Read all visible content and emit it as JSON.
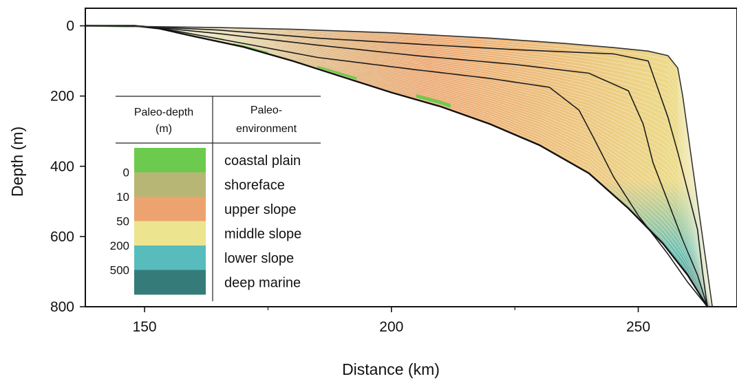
{
  "chart_data": {
    "type": "area",
    "title": "",
    "xlabel": "Distance (km)",
    "ylabel": "Depth (m)",
    "xlim": [
      138,
      270
    ],
    "ylim": [
      -50,
      800
    ],
    "y_inverted": true,
    "xticks": [
      150,
      200,
      250
    ],
    "xticks_minor": [
      175,
      225
    ],
    "yticks": [
      0,
      200,
      400,
      600,
      800
    ],
    "grid": false,
    "legend": {
      "placement": "lower-left",
      "header_depth": [
        "Paleo-depth",
        "(m)"
      ],
      "header_env": [
        "Paleo-",
        "environment"
      ],
      "entries": [
        {
          "label": "coastal plain",
          "color": "#6ccb4e"
        },
        {
          "label": "shoreface",
          "color": "#b8b675"
        },
        {
          "label": "upper slope",
          "color": "#eda36f"
        },
        {
          "label": "middle slope",
          "color": "#ede48f"
        },
        {
          "label": "lower slope",
          "color": "#58bcbd"
        },
        {
          "label": "deep marine",
          "color": "#347b79"
        }
      ],
      "depth_thresholds": [
        "0",
        "10",
        "50",
        "200",
        "500"
      ]
    },
    "colors": {
      "coastal_plain": "#6ccb4e",
      "shoreface": "#b8b675",
      "upper_slope": "#eda36f",
      "middle_slope": "#ede48f",
      "lower_slope": "#58bcbd",
      "deep_marine": "#347b79",
      "horizon": "#1d1d1d"
    },
    "profiles": {
      "top_surface": [
        [
          138,
          0
        ],
        [
          150,
          2
        ],
        [
          165,
          5
        ],
        [
          180,
          10
        ],
        [
          200,
          20
        ],
        [
          220,
          35
        ],
        [
          235,
          50
        ],
        [
          245,
          62
        ],
        [
          252,
          72
        ],
        [
          256,
          85
        ],
        [
          258,
          120
        ],
        [
          259,
          200
        ],
        [
          260,
          300
        ],
        [
          261,
          400
        ],
        [
          262,
          500
        ],
        [
          263,
          600
        ],
        [
          264,
          700
        ],
        [
          265,
          800
        ]
      ],
      "base_surface": [
        [
          138,
          0
        ],
        [
          148,
          0
        ],
        [
          153,
          8
        ],
        [
          160,
          30
        ],
        [
          170,
          60
        ],
        [
          180,
          100
        ],
        [
          190,
          145
        ],
        [
          200,
          190
        ],
        [
          210,
          230
        ],
        [
          220,
          280
        ],
        [
          230,
          340
        ],
        [
          240,
          420
        ],
        [
          248,
          520
        ],
        [
          255,
          620
        ],
        [
          260,
          710
        ],
        [
          264,
          800
        ]
      ],
      "horizons": [
        [
          [
            150,
            2
          ],
          [
            165,
            12
          ],
          [
            185,
            35
          ],
          [
            205,
            52
          ],
          [
            225,
            68
          ],
          [
            245,
            80
          ],
          [
            252,
            100
          ],
          [
            254,
            180
          ],
          [
            256,
            260
          ],
          [
            258,
            360
          ],
          [
            260,
            470
          ],
          [
            262,
            580
          ],
          [
            263,
            700
          ],
          [
            264,
            800
          ]
        ],
        [
          [
            152,
            4
          ],
          [
            165,
            22
          ],
          [
            185,
            55
          ],
          [
            205,
            85
          ],
          [
            225,
            110
          ],
          [
            240,
            135
          ],
          [
            248,
            185
          ],
          [
            251,
            280
          ],
          [
            253,
            390
          ],
          [
            256,
            500
          ],
          [
            259,
            610
          ],
          [
            262,
            710
          ],
          [
            264,
            800
          ]
        ],
        [
          [
            153,
            6
          ],
          [
            170,
            50
          ],
          [
            185,
            90
          ],
          [
            205,
            125
          ],
          [
            220,
            150
          ],
          [
            232,
            175
          ],
          [
            238,
            240
          ],
          [
            241,
            320
          ],
          [
            245,
            430
          ],
          [
            250,
            540
          ],
          [
            256,
            650
          ],
          [
            260,
            730
          ],
          [
            264,
            800
          ]
        ]
      ]
    }
  }
}
